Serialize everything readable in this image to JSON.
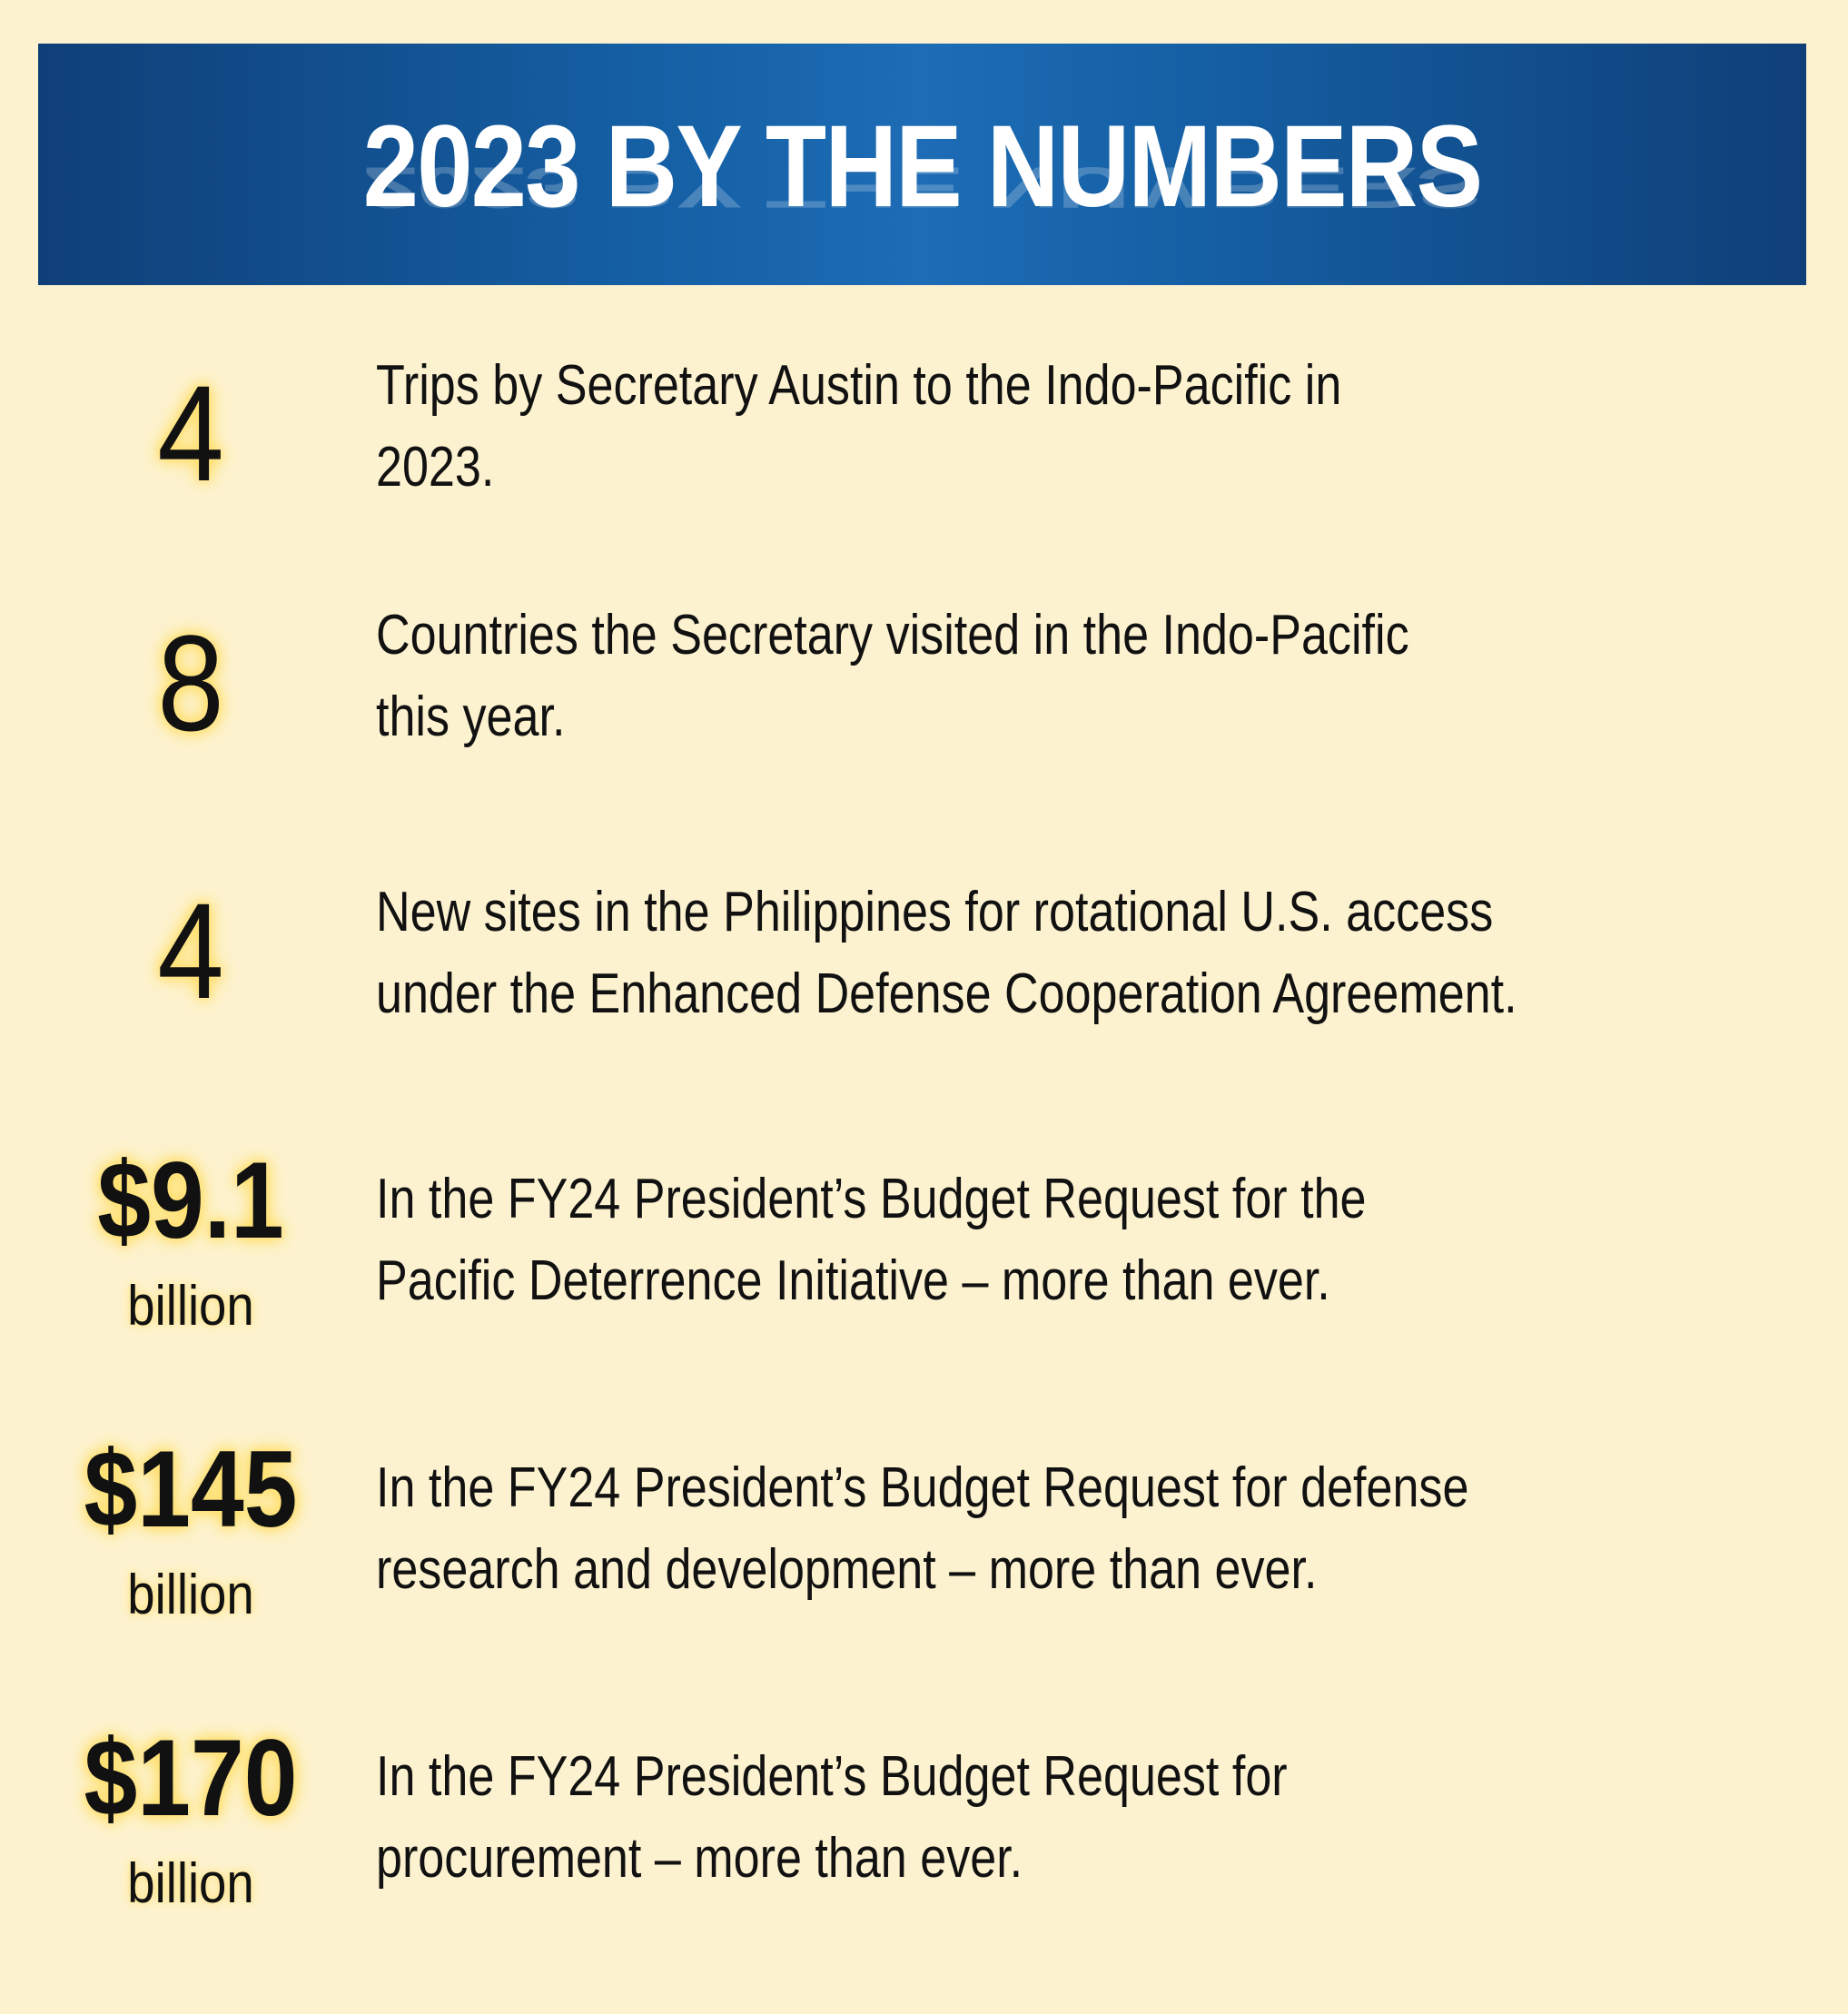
{
  "header": {
    "title": "2023 BY THE NUMBERS"
  },
  "stats": [
    {
      "value": "4",
      "unit": "",
      "line1": "Trips by Secretary Austin to the Indo-Pacific in",
      "line2": "2023."
    },
    {
      "value": "8",
      "unit": "",
      "line1": "Countries the Secretary visited in the Indo-Pacific",
      "line2": "this year."
    },
    {
      "value": "4",
      "unit": "",
      "line1": "New sites in the Philippines for rotational U.S. access",
      "line2": "under the Enhanced Defense Cooperation Agreement."
    },
    {
      "value": "$9.1",
      "unit": "billion",
      "line1": "In the FY24 President’s Budget Request for the",
      "line2": "Pacific Deterrence Initiative – more than ever."
    },
    {
      "value": "$145",
      "unit": "billion",
      "line1": "In the FY24 President’s Budget Request for defense",
      "line2": "research and development – more than ever."
    },
    {
      "value": "$170",
      "unit": "billion",
      "line1": "In the FY24 President’s Budget Request for",
      "line2": "procurement – more than ever."
    }
  ]
}
